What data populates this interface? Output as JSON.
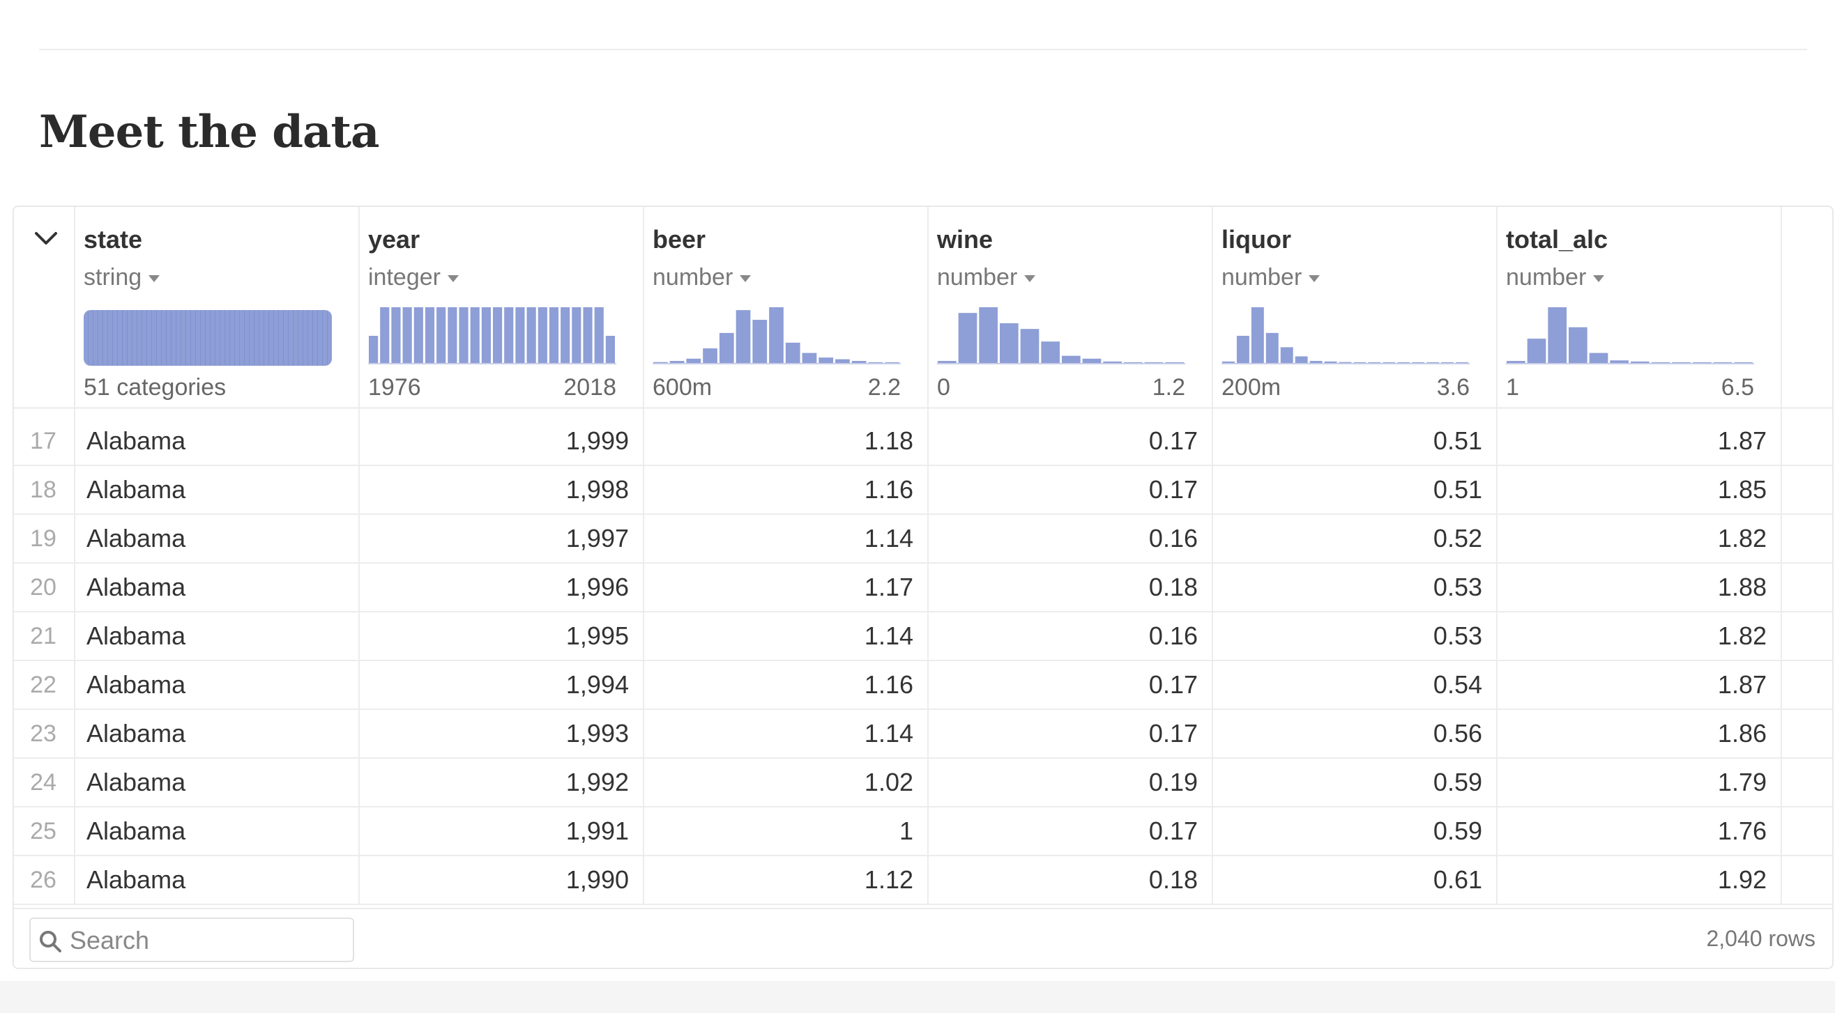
{
  "section": {
    "title": "Meet the data"
  },
  "columns": [
    {
      "name": "state",
      "type": "string",
      "kind": "categorical",
      "summary": "51 categories"
    },
    {
      "name": "year",
      "type": "integer",
      "kind": "histogram",
      "range_min": "1976",
      "range_max": "2018",
      "hist": [
        0.5,
        1,
        1,
        1,
        1,
        1,
        1,
        1,
        1,
        1,
        1,
        1,
        1,
        1,
        1,
        1,
        1,
        1,
        1,
        1,
        1,
        0.5
      ]
    },
    {
      "name": "beer",
      "type": "number",
      "kind": "histogram",
      "range_min": "600m",
      "range_max": "2.2",
      "hist": [
        0.04,
        0.06,
        0.1,
        0.28,
        0.55,
        0.95,
        0.78,
        1,
        0.38,
        0.2,
        0.12,
        0.09,
        0.06,
        0.03,
        0.02
      ]
    },
    {
      "name": "wine",
      "type": "number",
      "kind": "histogram",
      "range_min": "0",
      "range_max": "1.2",
      "hist": [
        0.06,
        0.9,
        1,
        0.72,
        0.62,
        0.4,
        0.15,
        0.1,
        0.05,
        0.03,
        0.03,
        0.02
      ]
    },
    {
      "name": "liquor",
      "type": "number",
      "kind": "histogram",
      "range_min": "200m",
      "range_max": "3.6",
      "hist": [
        0.05,
        0.5,
        1,
        0.55,
        0.3,
        0.14,
        0.06,
        0.05,
        0.04,
        0.03,
        0.03,
        0.03,
        0.03,
        0.03,
        0.03,
        0.03,
        0.03
      ]
    },
    {
      "name": "total_alc",
      "type": "number",
      "kind": "histogram",
      "range_min": "1",
      "range_max": "6.5",
      "hist": [
        0.06,
        0.45,
        1,
        0.65,
        0.2,
        0.07,
        0.05,
        0.03,
        0.03,
        0.03,
        0.03,
        0.03
      ]
    }
  ],
  "rows": [
    {
      "n": "17",
      "state": "Alabama",
      "year": "1,999",
      "beer": "1.18",
      "wine": "0.17",
      "liquor": "0.51",
      "total_alc": "1.87"
    },
    {
      "n": "18",
      "state": "Alabama",
      "year": "1,998",
      "beer": "1.16",
      "wine": "0.17",
      "liquor": "0.51",
      "total_alc": "1.85"
    },
    {
      "n": "19",
      "state": "Alabama",
      "year": "1,997",
      "beer": "1.14",
      "wine": "0.16",
      "liquor": "0.52",
      "total_alc": "1.82"
    },
    {
      "n": "20",
      "state": "Alabama",
      "year": "1,996",
      "beer": "1.17",
      "wine": "0.18",
      "liquor": "0.53",
      "total_alc": "1.88"
    },
    {
      "n": "21",
      "state": "Alabama",
      "year": "1,995",
      "beer": "1.14",
      "wine": "0.16",
      "liquor": "0.53",
      "total_alc": "1.82"
    },
    {
      "n": "22",
      "state": "Alabama",
      "year": "1,994",
      "beer": "1.16",
      "wine": "0.17",
      "liquor": "0.54",
      "total_alc": "1.87"
    },
    {
      "n": "23",
      "state": "Alabama",
      "year": "1,993",
      "beer": "1.14",
      "wine": "0.17",
      "liquor": "0.56",
      "total_alc": "1.86"
    },
    {
      "n": "24",
      "state": "Alabama",
      "year": "1,992",
      "beer": "1.02",
      "wine": "0.19",
      "liquor": "0.59",
      "total_alc": "1.79"
    },
    {
      "n": "25",
      "state": "Alabama",
      "year": "1,991",
      "beer": "1",
      "wine": "0.17",
      "liquor": "0.59",
      "total_alc": "1.76"
    },
    {
      "n": "26",
      "state": "Alabama",
      "year": "1,990",
      "beer": "1.12",
      "wine": "0.18",
      "liquor": "0.61",
      "total_alc": "1.92"
    }
  ],
  "search": {
    "placeholder": "Search",
    "value": ""
  },
  "footer": {
    "row_count": "2,040 rows"
  },
  "colors": {
    "accent": "#8e9ed6",
    "border": "#ececec",
    "muted_text": "#777777"
  },
  "icons": {
    "collapse": "chevron-down-icon",
    "search": "search-icon",
    "type_menu": "caret-down-icon"
  }
}
